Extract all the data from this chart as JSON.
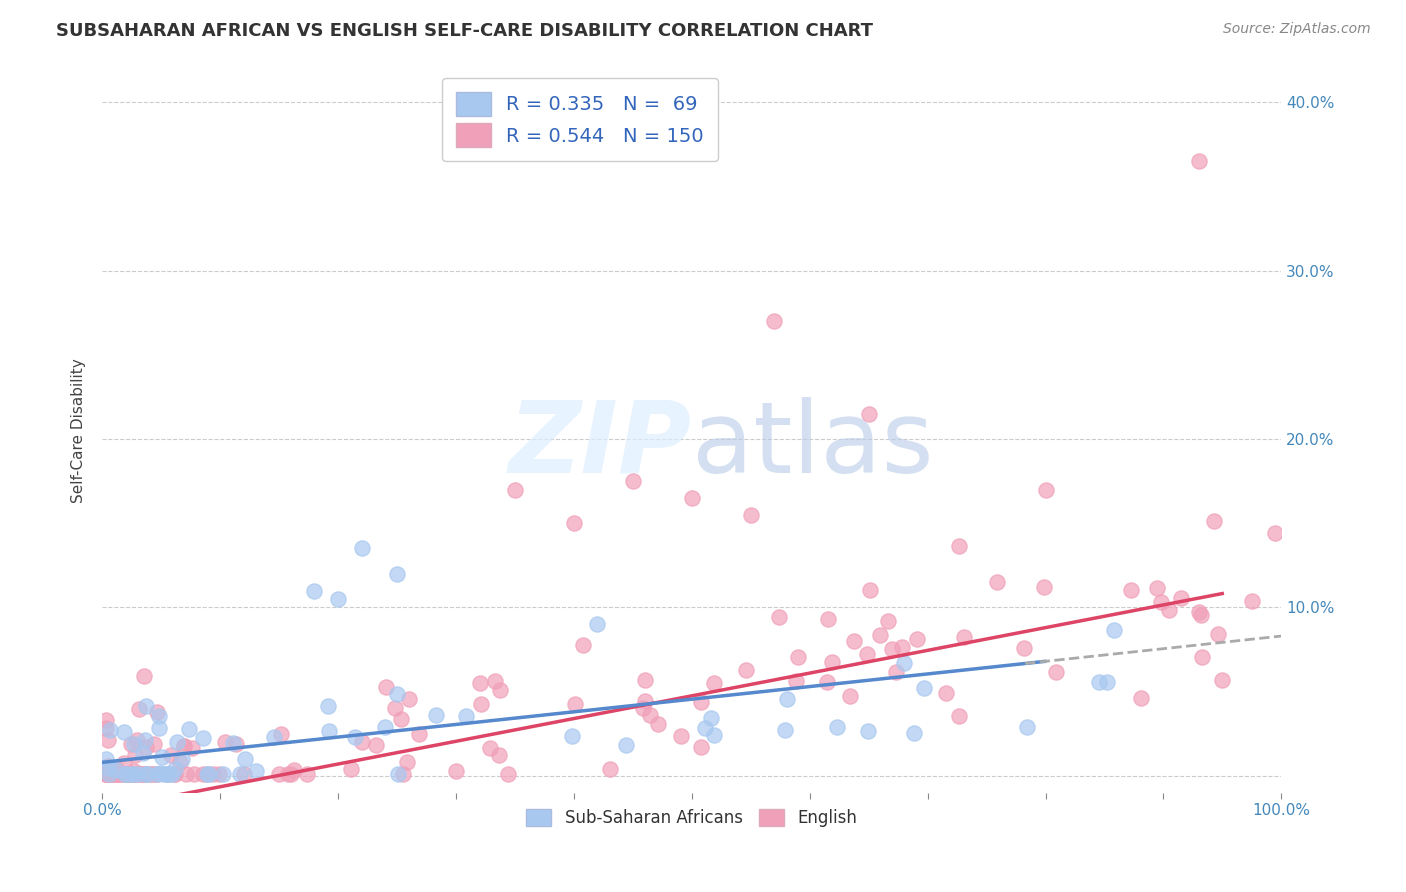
{
  "title": "SUBSAHARAN AFRICAN VS ENGLISH SELF-CARE DISABILITY CORRELATION CHART",
  "source": "Source: ZipAtlas.com",
  "ylabel": "Self-Care Disability",
  "xlim": [
    0,
    100
  ],
  "ylim": [
    -1,
    42
  ],
  "ytick_vals": [
    0,
    10,
    20,
    30,
    40
  ],
  "ytick_labels": [
    "",
    "10.0%",
    "20.0%",
    "30.0%",
    "40.0%"
  ],
  "xtick_vals": [
    0,
    10,
    20,
    30,
    40,
    50,
    60,
    70,
    80,
    90,
    100
  ],
  "xtick_labels": [
    "0.0%",
    "",
    "",
    "",
    "",
    "",
    "",
    "",
    "",
    "",
    "100.0%"
  ],
  "blue_r": "0.335",
  "blue_n": "69",
  "pink_r": "0.544",
  "pink_n": "150",
  "blue_color": "#a8c8f0",
  "pink_color": "#f0a0b8",
  "blue_fill": "#c8dcf8",
  "pink_fill": "#f8c0d0",
  "blue_line_color": "#5588cc",
  "pink_line_color": "#dd4466",
  "dash_line_color": "#aaaaaa",
  "watermark_color": "#d8e8f8",
  "watermark_text_color": "#c0d4e8"
}
